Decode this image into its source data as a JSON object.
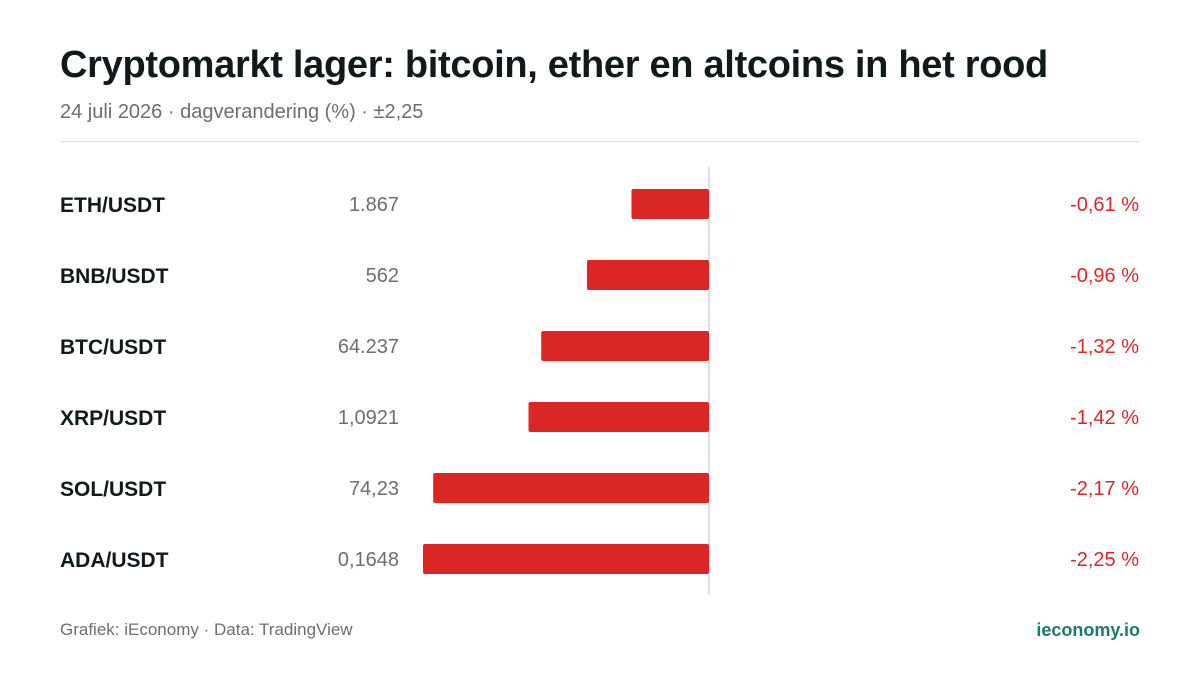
{
  "header": {
    "title": "Cryptomarkt lager: bitcoin, ether en altcoins in het rood",
    "subtitle": "24 juli 2026 · dagverandering (%) · ±2,25"
  },
  "footer": {
    "source": "Grafiek: iEconomy · Data: TradingView",
    "brand": "ieconomy.io"
  },
  "colors": {
    "negative": "#dc2626",
    "label": "#111a1a",
    "price": "#6b6f70",
    "axis": "#dcdfe0",
    "brand": "#1a7a6b"
  },
  "chart_data": {
    "type": "bar",
    "orientation": "horizontal",
    "unit": "%",
    "xlim": [
      -2.25,
      2.25
    ],
    "grid": false,
    "rows": [
      {
        "pair": "ETH/USDT",
        "price": "1.867",
        "change": -0.61,
        "change_label": "-0,61 %"
      },
      {
        "pair": "BNB/USDT",
        "price": "562",
        "change": -0.96,
        "change_label": "-0,96 %"
      },
      {
        "pair": "BTC/USDT",
        "price": "64.237",
        "change": -1.32,
        "change_label": "-1,32 %"
      },
      {
        "pair": "XRP/USDT",
        "price": "1,0921",
        "change": -1.42,
        "change_label": "-1,42 %"
      },
      {
        "pair": "SOL/USDT",
        "price": "74,23",
        "change": -2.17,
        "change_label": "-2,17 %"
      },
      {
        "pair": "ADA/USDT",
        "price": "0,1648",
        "change": -2.25,
        "change_label": "-2,25 %"
      }
    ]
  }
}
